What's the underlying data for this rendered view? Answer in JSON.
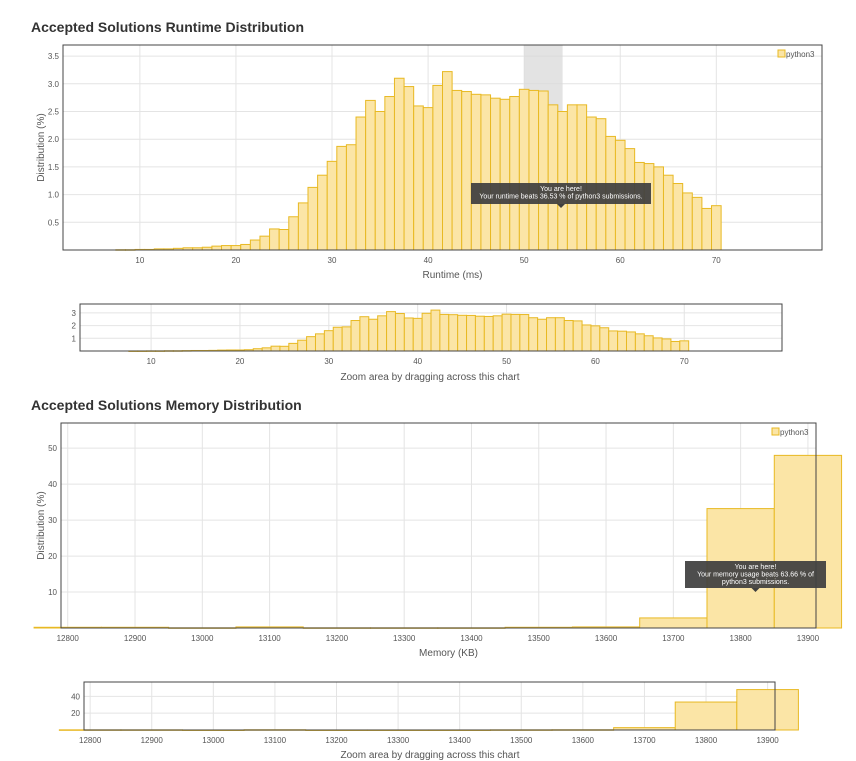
{
  "page": {
    "runtime_title": "Accepted Solutions Runtime Distribution",
    "memory_title": "Accepted Solutions Memory Distribution",
    "zoom_caption": "Zoom area by dragging across this chart"
  },
  "colors": {
    "bar_fill": "#fbe5a6",
    "bar_stroke": "#e8b923",
    "highlight": "#d9d9d9",
    "tooltip_bg": "#3f3f3f",
    "frame": "#444444",
    "grid": "#e4e4e4"
  },
  "chart_data": [
    {
      "id": "runtime",
      "type": "bar",
      "title": "Accepted Solutions Runtime Distribution",
      "xlabel": "Runtime (ms)",
      "ylabel": "Distribution (%)",
      "legend": "python3",
      "legend_position": "top-right",
      "xlim": [
        2,
        81
      ],
      "ylim": [
        0,
        3.7
      ],
      "xticks": [
        10,
        20,
        30,
        40,
        50,
        60,
        70
      ],
      "xtick_labels": [
        "10",
        "20",
        "30",
        "40",
        "50",
        "60",
        "70"
      ],
      "yticks": [
        0.5,
        1.0,
        1.5,
        2.0,
        2.5,
        3.0,
        3.5
      ],
      "ytick_labels": [
        "0.5",
        "1.0",
        "1.5",
        "2.0",
        "2.5",
        "3.0",
        "3.5"
      ],
      "bin_width": 1,
      "x": [
        8,
        9,
        10,
        11,
        12,
        13,
        14,
        15,
        16,
        17,
        18,
        19,
        20,
        21,
        22,
        23,
        24,
        25,
        26,
        27,
        28,
        29,
        30,
        31,
        32,
        33,
        34,
        35,
        36,
        37,
        38,
        39,
        40,
        41,
        42,
        43,
        44,
        45,
        46,
        47,
        48,
        49,
        50,
        51,
        52,
        53,
        54,
        55,
        56,
        57,
        58,
        59,
        60,
        61,
        62,
        63,
        64,
        65,
        66,
        67,
        68,
        69,
        70
      ],
      "values": [
        0.005,
        0.005,
        0.01,
        0.01,
        0.02,
        0.02,
        0.03,
        0.04,
        0.04,
        0.05,
        0.07,
        0.08,
        0.08,
        0.1,
        0.18,
        0.25,
        0.38,
        0.37,
        0.6,
        0.85,
        1.13,
        1.35,
        1.6,
        1.87,
        1.9,
        2.4,
        2.7,
        2.5,
        2.77,
        3.1,
        2.95,
        2.6,
        2.57,
        2.97,
        3.22,
        2.88,
        2.86,
        2.81,
        2.8,
        2.74,
        2.72,
        2.77,
        2.9,
        2.88,
        2.87,
        2.62,
        2.5,
        2.62,
        2.62,
        2.4,
        2.37,
        2.05,
        1.98,
        1.83,
        1.58,
        1.56,
        1.5,
        1.35,
        1.2,
        1.03,
        0.95,
        0.75,
        0.8
      ],
      "highlight_range": [
        50,
        54
      ],
      "tooltip": [
        "You are here!",
        "Your runtime beats 36.53 % of python3 submissions."
      ]
    },
    {
      "id": "runtime-zoom",
      "type": "bar",
      "xlim": [
        2,
        81
      ],
      "ylim": [
        0,
        3.7
      ],
      "xticks": [
        10,
        20,
        30,
        40,
        50,
        60,
        70
      ],
      "xtick_labels": [
        "10",
        "20",
        "30",
        "40",
        "50",
        "60",
        "70"
      ],
      "yticks": [
        1,
        2,
        3
      ],
      "ytick_labels": [
        "1",
        "2",
        "3"
      ],
      "source": "runtime"
    },
    {
      "id": "memory",
      "type": "bar",
      "title": "Accepted Solutions Memory Distribution",
      "xlabel": "Memory (KB)",
      "ylabel": "Distribution (%)",
      "legend": "python3",
      "legend_position": "top-right",
      "xlim": [
        12790,
        13912
      ],
      "ylim": [
        0,
        57
      ],
      "xticks": [
        12800,
        12900,
        13000,
        13100,
        13200,
        13300,
        13400,
        13500,
        13600,
        13700,
        13800,
        13900
      ],
      "xtick_labels": [
        "12800",
        "12900",
        "13000",
        "13100",
        "13200",
        "13300",
        "13400",
        "13500",
        "13600",
        "13700",
        "13800",
        "13900"
      ],
      "yticks": [
        10,
        20,
        30,
        40,
        50
      ],
      "ytick_labels": [
        "10",
        "20",
        "30",
        "40",
        "50"
      ],
      "bin_width": 100,
      "x": [
        12800,
        12900,
        13000,
        13100,
        13200,
        13300,
        13400,
        13500,
        13600,
        13700,
        13800,
        13900
      ],
      "values": [
        0.2,
        0.2,
        0.05,
        0.3,
        0.05,
        0.05,
        0.05,
        0.2,
        0.3,
        2.8,
        33.2,
        48.0
      ],
      "tooltip": [
        "You are here!",
        "Your memory usage beats 63.66 % of",
        "python3 submissions."
      ]
    },
    {
      "id": "memory-zoom",
      "type": "bar",
      "xlim": [
        12790,
        13912
      ],
      "ylim": [
        0,
        57
      ],
      "xticks": [
        12800,
        12900,
        13000,
        13100,
        13200,
        13300,
        13400,
        13500,
        13600,
        13700,
        13800,
        13900
      ],
      "xtick_labels": [
        "12800",
        "12900",
        "13000",
        "13100",
        "13200",
        "13300",
        "13400",
        "13500",
        "13600",
        "13700",
        "13800",
        "13900"
      ],
      "yticks": [
        20,
        40
      ],
      "ytick_labels": [
        "20",
        "40"
      ],
      "source": "memory"
    }
  ]
}
